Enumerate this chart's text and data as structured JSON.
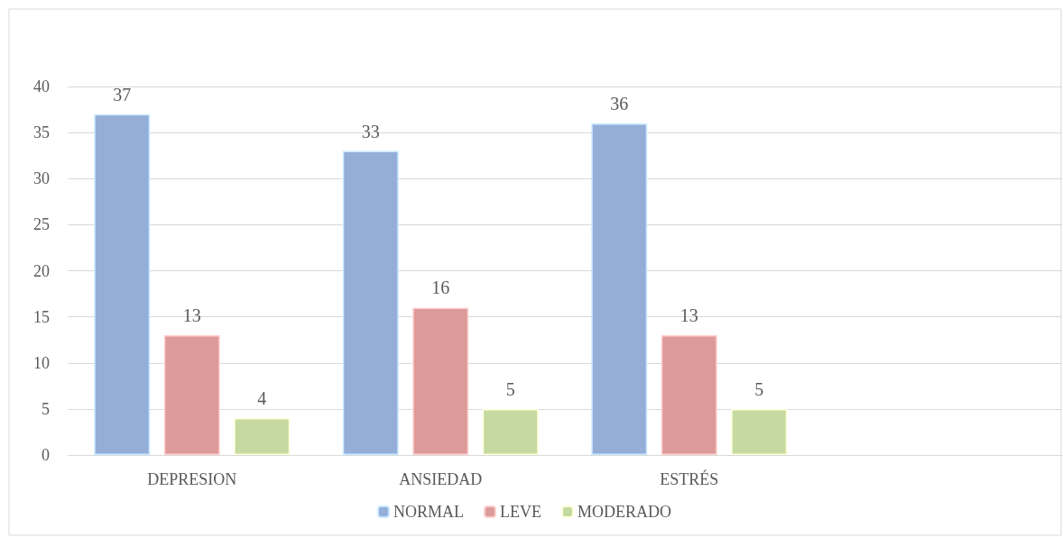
{
  "chart_data": {
    "type": "bar",
    "categories": [
      "DEPRESION",
      "ANSIEDAD",
      "ESTRÉS",
      null
    ],
    "series": [
      {
        "name": "NORMAL",
        "color": "#95aed8",
        "values": [
          37,
          33,
          36,
          null
        ]
      },
      {
        "name": "LEVE",
        "color": "#dc9b9a",
        "values": [
          13,
          16,
          13,
          null
        ]
      },
      {
        "name": "MODERADO",
        "color": "#c5d9a0",
        "values": [
          4,
          5,
          5,
          null
        ]
      }
    ],
    "ylim": [
      0,
      40
    ],
    "yticks": [
      0,
      5,
      10,
      15,
      20,
      25,
      30,
      35,
      40
    ],
    "grid": "y",
    "legend": "bottom",
    "data_labels": true
  }
}
